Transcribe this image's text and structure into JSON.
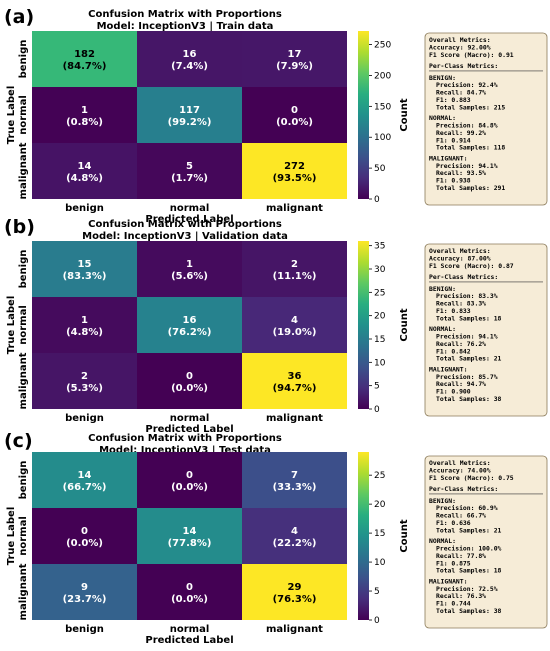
{
  "chart_data": [
    {
      "type": "heatmap",
      "panel_label": "(a)",
      "title_line1": "Confusion Matrix with Proportions",
      "title_line2": "Model: InceptionV3 | Train data",
      "xlabel": "Predicted Label",
      "ylabel": "True Label",
      "x_categories": [
        "benign",
        "normal",
        "malignant"
      ],
      "y_categories": [
        "benign",
        "normal",
        "malignant"
      ],
      "values": [
        [
          182,
          16,
          17
        ],
        [
          1,
          117,
          0
        ],
        [
          14,
          5,
          272
        ]
      ],
      "percentages": [
        [
          "(84.7%)",
          "(7.4%)",
          "(7.9%)"
        ],
        [
          "(0.8%)",
          "(99.2%)",
          "(0.0%)"
        ],
        [
          "(4.8%)",
          "(1.7%)",
          "(93.5%)"
        ]
      ],
      "colorbar": {
        "label": "Count",
        "ticks": [
          0,
          50,
          100,
          150,
          200,
          250
        ],
        "range": [
          0,
          272
        ],
        "colormap": "viridis"
      },
      "metrics": {
        "overall_header": "Overall Metrics:",
        "accuracy": "Accuracy: 92.00%",
        "f1_macro": "F1 Score (Macro): 0.91",
        "per_class_header": "Per-Class Metrics:",
        "classes": [
          {
            "name": "BENIGN:",
            "precision": "Precision: 92.4%",
            "recall": "Recall: 84.7%",
            "f1": "F1: 0.883",
            "samples": "Total Samples: 215"
          },
          {
            "name": "NORMAL:",
            "precision": "Precision: 84.8%",
            "recall": "Recall: 99.2%",
            "f1": "F1: 0.914",
            "samples": "Total Samples: 118"
          },
          {
            "name": "MALIGNANT:",
            "precision": "Precision: 94.1%",
            "recall": "Recall: 93.5%",
            "f1": "F1: 0.938",
            "samples": "Total Samples: 291"
          }
        ]
      }
    },
    {
      "type": "heatmap",
      "panel_label": "(b)",
      "title_line1": "Confusion Matrix with Proportions",
      "title_line2": "Model: InceptionV3 | Validation data",
      "xlabel": "Predicted Label",
      "ylabel": "True Label",
      "x_categories": [
        "benign",
        "normal",
        "malignant"
      ],
      "y_categories": [
        "benign",
        "normal",
        "malignant"
      ],
      "values": [
        [
          15,
          1,
          2
        ],
        [
          1,
          16,
          4
        ],
        [
          2,
          0,
          36
        ]
      ],
      "percentages": [
        [
          "(83.3%)",
          "(5.6%)",
          "(11.1%)"
        ],
        [
          "(4.8%)",
          "(76.2%)",
          "(19.0%)"
        ],
        [
          "(5.3%)",
          "(0.0%)",
          "(94.7%)"
        ]
      ],
      "colorbar": {
        "label": "Count",
        "ticks": [
          0,
          5,
          10,
          15,
          20,
          25,
          30,
          35
        ],
        "range": [
          0,
          36
        ],
        "colormap": "viridis"
      },
      "metrics": {
        "overall_header": "Overall Metrics:",
        "accuracy": "Accuracy: 87.00%",
        "f1_macro": "F1 Score (Macro): 0.87",
        "per_class_header": "Per-Class Metrics:",
        "classes": [
          {
            "name": "BENIGN:",
            "precision": "Precision: 83.3%",
            "recall": "Recall: 83.3%",
            "f1": "F1: 0.833",
            "samples": "Total Samples: 18"
          },
          {
            "name": "NORMAL:",
            "precision": "Precision: 94.1%",
            "recall": "Recall: 76.2%",
            "f1": "F1: 0.842",
            "samples": "Total Samples: 21"
          },
          {
            "name": "MALIGNANT:",
            "precision": "Precision: 85.7%",
            "recall": "Recall: 94.7%",
            "f1": "F1: 0.900",
            "samples": "Total Samples: 38"
          }
        ]
      }
    },
    {
      "type": "heatmap",
      "panel_label": "(c)",
      "title_line1": "Confusion Matrix with Proportions",
      "title_line2": "Model: InceptionV3 | Test data",
      "xlabel": "Predicted Label",
      "ylabel": "True Label",
      "x_categories": [
        "benign",
        "normal",
        "malignant"
      ],
      "y_categories": [
        "benign",
        "normal",
        "malignant"
      ],
      "values": [
        [
          14,
          0,
          7
        ],
        [
          0,
          14,
          4
        ],
        [
          9,
          0,
          29
        ]
      ],
      "percentages": [
        [
          "(66.7%)",
          "(0.0%)",
          "(33.3%)"
        ],
        [
          "(0.0%)",
          "(77.8%)",
          "(22.2%)"
        ],
        [
          "(23.7%)",
          "(0.0%)",
          "(76.3%)"
        ]
      ],
      "colorbar": {
        "label": "Count",
        "ticks": [
          0,
          5,
          10,
          15,
          20,
          25
        ],
        "range": [
          0,
          29
        ],
        "colormap": "viridis"
      },
      "metrics": {
        "overall_header": "Overall Metrics:",
        "accuracy": "Accuracy: 74.00%",
        "f1_macro": "F1 Score (Macro): 0.75",
        "per_class_header": "Per-Class Metrics:",
        "classes": [
          {
            "name": "BENIGN:",
            "precision": "Precision: 60.9%",
            "recall": "Recall: 66.7%",
            "f1": "F1: 0.636",
            "samples": "Total Samples: 21"
          },
          {
            "name": "NORMAL:",
            "precision": "Precision: 100.0%",
            "recall": "Recall: 77.8%",
            "f1": "F1: 0.875",
            "samples": "Total Samples: 18"
          },
          {
            "name": "MALIGNANT:",
            "precision": "Precision: 72.5%",
            "recall": "Recall: 76.3%",
            "f1": "F1: 0.744",
            "samples": "Total Samples: 38"
          }
        ]
      }
    }
  ],
  "colors": {
    "metrics_box_fill": "#f6ecd7",
    "metrics_box_border": "#8a7a5a"
  }
}
